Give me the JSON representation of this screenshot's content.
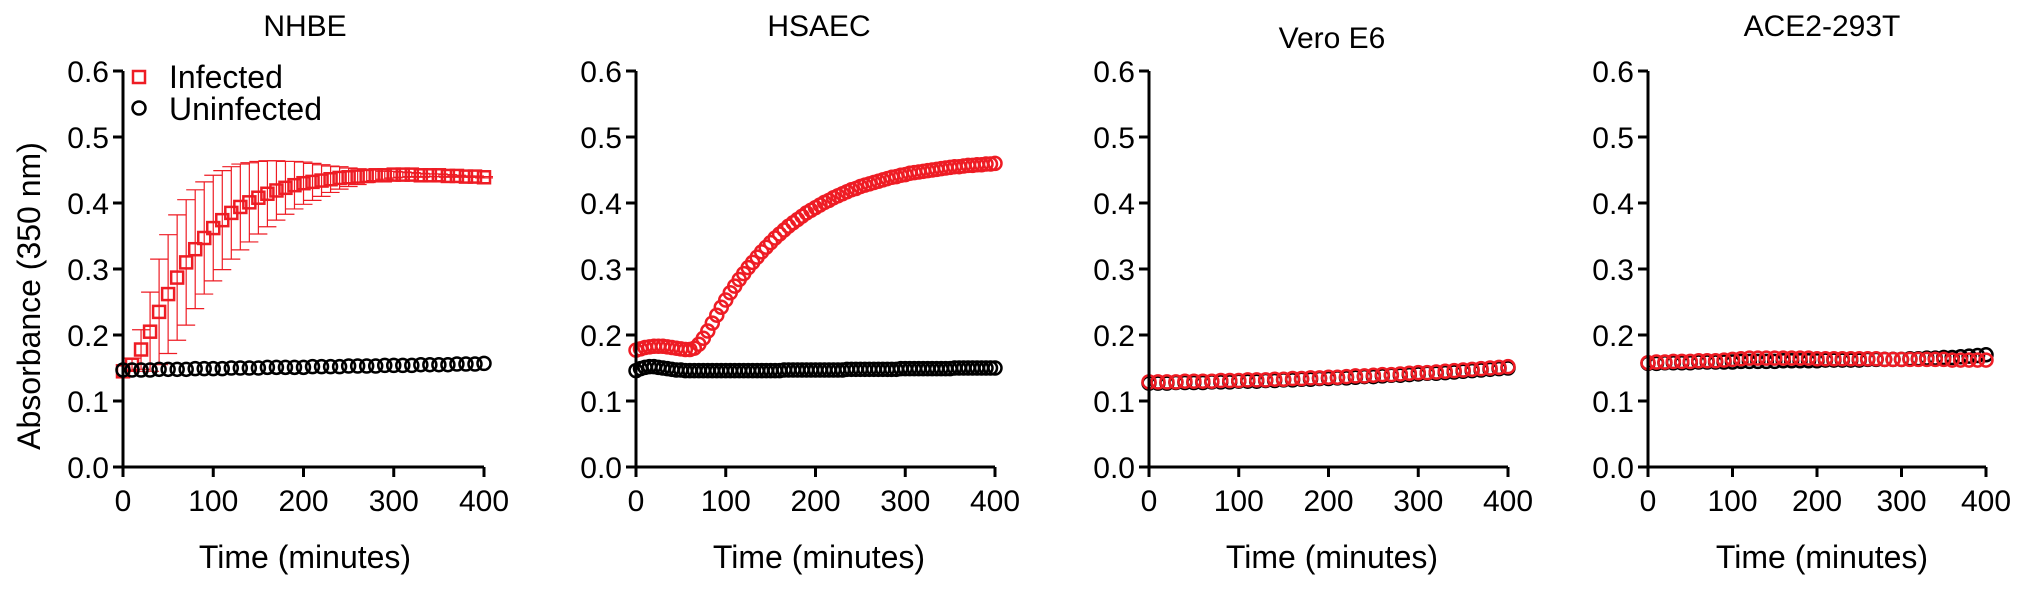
{
  "chart_data": [
    {
      "type": "scatter",
      "title": "NHBE",
      "xlabel": "Time (minutes)",
      "ylabel": "Absorbance (350 nm)",
      "xlim": [
        0,
        400
      ],
      "ylim": [
        0,
        0.6
      ],
      "xticks": [
        "0",
        "100",
        "200",
        "300",
        "400"
      ],
      "yticks": [
        "0.0",
        "0.1",
        "0.2",
        "0.3",
        "0.4",
        "0.5",
        "0.6"
      ],
      "legend": "top-left",
      "error_bars": true,
      "series": [
        {
          "name": "Infected",
          "marker": "square",
          "color": "#ee1c24",
          "x": [
            0,
            10,
            20,
            30,
            40,
            50,
            60,
            70,
            80,
            90,
            100,
            110,
            120,
            130,
            140,
            150,
            160,
            170,
            180,
            190,
            200,
            210,
            220,
            230,
            240,
            250,
            260,
            270,
            280,
            290,
            300,
            310,
            320,
            330,
            340,
            350,
            360,
            370,
            380,
            390,
            400
          ],
          "y": [
            0.145,
            0.155,
            0.178,
            0.205,
            0.235,
            0.262,
            0.287,
            0.31,
            0.33,
            0.347,
            0.362,
            0.374,
            0.385,
            0.394,
            0.401,
            0.408,
            0.414,
            0.419,
            0.423,
            0.427,
            0.43,
            0.432,
            0.434,
            0.436,
            0.438,
            0.439,
            0.44,
            0.441,
            0.442,
            0.442,
            0.443,
            0.443,
            0.443,
            0.442,
            0.442,
            0.442,
            0.441,
            0.441,
            0.44,
            0.44,
            0.439
          ],
          "error": [
            0,
            0.01,
            0.03,
            0.06,
            0.08,
            0.09,
            0.095,
            0.095,
            0.09,
            0.085,
            0.08,
            0.075,
            0.07,
            0.065,
            0.06,
            0.055,
            0.05,
            0.045,
            0.04,
            0.036,
            0.032,
            0.028,
            0.024,
            0.02,
            0.017,
            0.014,
            0.012,
            0.01,
            0.008,
            0.006,
            0.005,
            0.004,
            0.003,
            0.003,
            0.002,
            0.002,
            0.002,
            0.001,
            0.001,
            0.001,
            0.001
          ]
        },
        {
          "name": "Uninfected",
          "marker": "circle",
          "color": "#000000",
          "x": [
            0,
            10,
            20,
            30,
            40,
            50,
            60,
            70,
            80,
            90,
            100,
            110,
            120,
            130,
            140,
            150,
            160,
            170,
            180,
            190,
            200,
            210,
            220,
            230,
            240,
            250,
            260,
            270,
            280,
            290,
            300,
            310,
            320,
            330,
            340,
            350,
            360,
            370,
            380,
            390,
            400
          ],
          "y": [
            0.147,
            0.147,
            0.147,
            0.147,
            0.148,
            0.148,
            0.148,
            0.148,
            0.149,
            0.149,
            0.149,
            0.149,
            0.15,
            0.15,
            0.15,
            0.15,
            0.151,
            0.151,
            0.151,
            0.151,
            0.151,
            0.152,
            0.152,
            0.152,
            0.152,
            0.153,
            0.153,
            0.153,
            0.153,
            0.154,
            0.154,
            0.154,
            0.154,
            0.155,
            0.155,
            0.155,
            0.155,
            0.156,
            0.156,
            0.156,
            0.157
          ]
        }
      ]
    },
    {
      "type": "scatter",
      "title": "HSAEC",
      "xlabel": "Time (minutes)",
      "ylabel": "",
      "xlim": [
        0,
        400
      ],
      "ylim": [
        0,
        0.6
      ],
      "xticks": [
        "0",
        "100",
        "200",
        "300",
        "400"
      ],
      "yticks": [
        "0.0",
        "0.1",
        "0.2",
        "0.3",
        "0.4",
        "0.5",
        "0.6"
      ],
      "series": [
        {
          "marker": "circle",
          "color": "#ee1c24",
          "x": [
            0,
            5,
            10,
            15,
            20,
            25,
            30,
            35,
            40,
            45,
            50,
            55,
            60,
            65,
            70,
            75,
            80,
            85,
            90,
            95,
            100,
            105,
            110,
            115,
            120,
            125,
            130,
            135,
            140,
            145,
            150,
            155,
            160,
            165,
            170,
            175,
            180,
            185,
            190,
            195,
            200,
            205,
            210,
            215,
            220,
            225,
            230,
            235,
            240,
            245,
            250,
            255,
            260,
            265,
            270,
            275,
            280,
            285,
            290,
            295,
            300,
            305,
            310,
            315,
            320,
            325,
            330,
            335,
            340,
            345,
            350,
            355,
            360,
            365,
            370,
            375,
            380,
            385,
            390,
            395,
            400
          ],
          "y": [
            0.177,
            0.179,
            0.181,
            0.182,
            0.183,
            0.183,
            0.183,
            0.182,
            0.181,
            0.18,
            0.179,
            0.178,
            0.178,
            0.18,
            0.186,
            0.195,
            0.206,
            0.218,
            0.23,
            0.242,
            0.253,
            0.264,
            0.274,
            0.284,
            0.293,
            0.302,
            0.31,
            0.318,
            0.326,
            0.333,
            0.34,
            0.347,
            0.353,
            0.359,
            0.365,
            0.37,
            0.375,
            0.38,
            0.385,
            0.389,
            0.393,
            0.397,
            0.401,
            0.404,
            0.408,
            0.411,
            0.414,
            0.417,
            0.42,
            0.422,
            0.425,
            0.427,
            0.429,
            0.431,
            0.433,
            0.435,
            0.437,
            0.439,
            0.44,
            0.442,
            0.443,
            0.445,
            0.446,
            0.447,
            0.448,
            0.449,
            0.45,
            0.451,
            0.452,
            0.453,
            0.454,
            0.455,
            0.455,
            0.456,
            0.457,
            0.457,
            0.458,
            0.458,
            0.459,
            0.459,
            0.46
          ]
        },
        {
          "marker": "circle",
          "color": "#000000",
          "x": [
            0,
            5,
            10,
            15,
            20,
            25,
            30,
            35,
            40,
            45,
            50,
            55,
            60,
            65,
            70,
            75,
            80,
            85,
            90,
            95,
            100,
            105,
            110,
            115,
            120,
            125,
            130,
            135,
            140,
            145,
            150,
            155,
            160,
            165,
            170,
            175,
            180,
            185,
            190,
            195,
            200,
            205,
            210,
            215,
            220,
            225,
            230,
            235,
            240,
            245,
            250,
            255,
            260,
            265,
            270,
            275,
            280,
            285,
            290,
            295,
            300,
            305,
            310,
            315,
            320,
            325,
            330,
            335,
            340,
            345,
            350,
            355,
            360,
            365,
            370,
            375,
            380,
            385,
            390,
            395,
            400
          ],
          "y": [
            0.146,
            0.149,
            0.151,
            0.152,
            0.152,
            0.151,
            0.15,
            0.149,
            0.148,
            0.147,
            0.147,
            0.146,
            0.146,
            0.146,
            0.146,
            0.146,
            0.146,
            0.146,
            0.146,
            0.146,
            0.146,
            0.146,
            0.146,
            0.146,
            0.146,
            0.146,
            0.146,
            0.146,
            0.146,
            0.146,
            0.146,
            0.146,
            0.146,
            0.147,
            0.147,
            0.147,
            0.147,
            0.147,
            0.147,
            0.147,
            0.147,
            0.147,
            0.147,
            0.147,
            0.147,
            0.147,
            0.147,
            0.148,
            0.148,
            0.148,
            0.148,
            0.148,
            0.148,
            0.148,
            0.148,
            0.148,
            0.148,
            0.148,
            0.148,
            0.149,
            0.149,
            0.149,
            0.149,
            0.149,
            0.149,
            0.149,
            0.149,
            0.149,
            0.149,
            0.149,
            0.149,
            0.15,
            0.15,
            0.15,
            0.15,
            0.15,
            0.15,
            0.15,
            0.15,
            0.15,
            0.15
          ]
        }
      ]
    },
    {
      "type": "scatter",
      "title": "Vero E6",
      "xlabel": "Time (minutes)",
      "ylabel": "",
      "xlim": [
        0,
        400
      ],
      "ylim": [
        0,
        0.6
      ],
      "xticks": [
        "0",
        "100",
        "200",
        "300",
        "400"
      ],
      "yticks": [
        "0.0",
        "0.1",
        "0.2",
        "0.3",
        "0.4",
        "0.5",
        "0.6"
      ],
      "series": [
        {
          "marker": "circle",
          "color": "#000000",
          "x": [
            0,
            10,
            20,
            30,
            40,
            50,
            60,
            70,
            80,
            90,
            100,
            110,
            120,
            130,
            140,
            150,
            160,
            170,
            180,
            190,
            200,
            210,
            220,
            230,
            240,
            250,
            260,
            270,
            280,
            290,
            300,
            310,
            320,
            330,
            340,
            350,
            360,
            370,
            380,
            390,
            400
          ],
          "y": [
            0.127,
            0.127,
            0.127,
            0.128,
            0.128,
            0.128,
            0.128,
            0.129,
            0.129,
            0.129,
            0.13,
            0.13,
            0.13,
            0.131,
            0.131,
            0.132,
            0.132,
            0.133,
            0.133,
            0.134,
            0.134,
            0.135,
            0.135,
            0.136,
            0.137,
            0.137,
            0.138,
            0.139,
            0.139,
            0.14,
            0.141,
            0.142,
            0.142,
            0.143,
            0.144,
            0.145,
            0.146,
            0.147,
            0.148,
            0.149,
            0.15
          ]
        },
        {
          "marker": "circle",
          "color": "#ee1c24",
          "x": [
            0,
            10,
            20,
            30,
            40,
            50,
            60,
            70,
            80,
            90,
            100,
            110,
            120,
            130,
            140,
            150,
            160,
            170,
            180,
            190,
            200,
            210,
            220,
            230,
            240,
            250,
            260,
            270,
            280,
            290,
            300,
            310,
            320,
            330,
            340,
            350,
            360,
            370,
            380,
            390,
            400
          ],
          "y": [
            0.129,
            0.129,
            0.129,
            0.129,
            0.13,
            0.13,
            0.13,
            0.13,
            0.131,
            0.131,
            0.131,
            0.132,
            0.132,
            0.132,
            0.133,
            0.133,
            0.134,
            0.134,
            0.135,
            0.135,
            0.136,
            0.136,
            0.137,
            0.138,
            0.138,
            0.139,
            0.14,
            0.14,
            0.141,
            0.142,
            0.143,
            0.143,
            0.144,
            0.145,
            0.146,
            0.147,
            0.148,
            0.149,
            0.15,
            0.151,
            0.152
          ]
        }
      ]
    },
    {
      "type": "scatter",
      "title": "ACE2-293T",
      "xlabel": "Time (minutes)",
      "ylabel": "",
      "xlim": [
        0,
        400
      ],
      "ylim": [
        0,
        0.6
      ],
      "xticks": [
        "0",
        "100",
        "200",
        "300",
        "400"
      ],
      "yticks": [
        "0.0",
        "0.1",
        "0.2",
        "0.3",
        "0.4",
        "0.5",
        "0.6"
      ],
      "series": [
        {
          "marker": "circle",
          "color": "#000000",
          "x": [
            0,
            10,
            20,
            30,
            40,
            50,
            60,
            70,
            80,
            90,
            100,
            110,
            120,
            130,
            140,
            150,
            160,
            170,
            180,
            190,
            200,
            210,
            220,
            230,
            240,
            250,
            260,
            270,
            280,
            290,
            300,
            310,
            320,
            330,
            340,
            350,
            360,
            370,
            380,
            390,
            400
          ],
          "y": [
            0.157,
            0.157,
            0.158,
            0.158,
            0.158,
            0.158,
            0.159,
            0.159,
            0.159,
            0.159,
            0.159,
            0.16,
            0.16,
            0.16,
            0.16,
            0.16,
            0.161,
            0.161,
            0.161,
            0.161,
            0.161,
            0.162,
            0.162,
            0.162,
            0.162,
            0.162,
            0.163,
            0.163,
            0.163,
            0.163,
            0.163,
            0.164,
            0.164,
            0.165,
            0.165,
            0.166,
            0.166,
            0.167,
            0.168,
            0.169,
            0.17
          ]
        },
        {
          "marker": "circle",
          "color": "#ee1c24",
          "x": [
            0,
            10,
            20,
            30,
            40,
            50,
            60,
            70,
            80,
            90,
            100,
            110,
            120,
            130,
            140,
            150,
            160,
            170,
            180,
            190,
            200,
            210,
            220,
            230,
            240,
            250,
            260,
            270,
            280,
            290,
            300,
            310,
            320,
            330,
            340,
            350,
            360,
            370,
            380,
            390,
            400
          ],
          "y": [
            0.158,
            0.159,
            0.159,
            0.16,
            0.16,
            0.16,
            0.161,
            0.161,
            0.161,
            0.162,
            0.163,
            0.164,
            0.165,
            0.165,
            0.165,
            0.165,
            0.165,
            0.165,
            0.165,
            0.165,
            0.164,
            0.164,
            0.164,
            0.164,
            0.164,
            0.164,
            0.164,
            0.164,
            0.163,
            0.163,
            0.163,
            0.163,
            0.163,
            0.163,
            0.163,
            0.163,
            0.162,
            0.162,
            0.162,
            0.162,
            0.162
          ]
        }
      ]
    }
  ],
  "legend": {
    "items": [
      {
        "label": "Infected",
        "marker": "square",
        "color": "#ee1c24"
      },
      {
        "label": "Uninfected",
        "marker": "circle",
        "color": "#000000"
      }
    ]
  }
}
